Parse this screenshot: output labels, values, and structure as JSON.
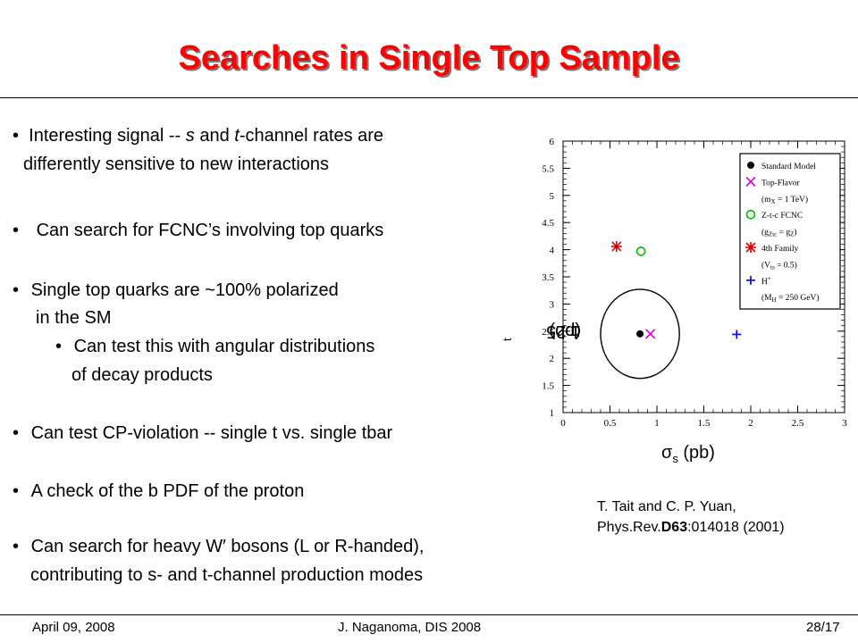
{
  "title": "Searches in Single Top Sample",
  "bullets": {
    "b1_pre": "Interesting signal -- ",
    "b1_s": "s",
    "b1_mid": " and ",
    "b1_t": "t",
    "b1_post": "-channel rates are",
    "b1_line2": "differently sensitive to new interactions",
    "b2": "Can search for FCNC’s involving top quarks",
    "b3": "Single top quarks are ~100% polarized",
    "b3_line2": "in the SM",
    "b4": "Can test this with angular distributions",
    "b4_line2": "of decay products",
    "b5": "Can test CP-violation -- single t vs. single tbar",
    "b6": "A check of the b PDF of the proton",
    "b7": "Can search for heavy W′ bosons (L or R-handed),",
    "b7_line2": "contributing to s- and t-channel production modes",
    "bullet_char": "•"
  },
  "citation": {
    "line1": "T. Tait and C. P. Yuan,",
    "journal": "Phys.Rev.",
    "volume": "D63",
    "rest": ":014018 (2001)"
  },
  "footer": {
    "date": "April 09, 2008",
    "author": "J. Naganoma, DIS 2008",
    "page": "28/17"
  },
  "chart_data": {
    "type": "scatter",
    "xlabel_symbol": "σ",
    "xlabel_sub": "s",
    "xlabel_unit": " (pb)",
    "ylabel_prefix": "1.25 ",
    "ylabel_symbol": "σ",
    "ylabel_sub": "t",
    "ylabel_unit": " (pb)",
    "xlim": [
      0,
      3
    ],
    "ylim": [
      1,
      6
    ],
    "x_ticks": [
      "0",
      "0.5",
      "1",
      "1.5",
      "2",
      "2.5",
      "3"
    ],
    "y_ticks": [
      "1",
      "1.5",
      "2",
      "2.5",
      "3",
      "3.5",
      "4",
      "4.5",
      "5",
      "5.5",
      "6"
    ],
    "series": [
      {
        "name": "Standard Model",
        "marker": "dot",
        "color": "#000000",
        "x": 0.82,
        "y": 2.45
      },
      {
        "name": "Top-Flavor",
        "marker": "x",
        "color": "#cc00cc",
        "x": 0.93,
        "y": 2.45
      },
      {
        "name": "Z-t-c FCNC",
        "marker": "circle",
        "color": "#00bb00",
        "x": 0.83,
        "y": 3.97
      },
      {
        "name": "4th Family",
        "marker": "star",
        "color": "#dd0000",
        "x": 0.57,
        "y": 4.06
      },
      {
        "name": "H+",
        "marker": "plus",
        "color": "#0000ee",
        "x": 1.85,
        "y": 2.44
      }
    ],
    "ellipse": {
      "cx": 0.82,
      "cy": 2.45,
      "rx": 0.42,
      "ry": 0.82
    },
    "legend": {
      "placement": "top-right",
      "entries": [
        {
          "label": "Standard Model",
          "marker": "dot",
          "color": "#000000"
        },
        {
          "label": "Top-Flavor",
          "marker": "x",
          "color": "#cc00cc"
        },
        {
          "label": "(m",
          "sub": "X",
          "tail": " = 1 TeV)",
          "marker": "none"
        },
        {
          "label": "Z-t-c FCNC",
          "marker": "circle",
          "color": "#00bb00"
        },
        {
          "label": "(g",
          "sub": "Ztc",
          "tail": " = g",
          "sub2": "Z",
          "tail2": ")",
          "marker": "none"
        },
        {
          "label": "4th Family",
          "marker": "star",
          "color": "#dd0000"
        },
        {
          "label": "(V",
          "sub": "ts",
          "tail": " = 0.5)",
          "marker": "none"
        },
        {
          "label": "H",
          "sup": "+",
          "marker": "plus",
          "color": "#0000ee"
        },
        {
          "label": "(M",
          "sub": "H",
          "tail": " = 250 GeV)",
          "marker": "none"
        }
      ]
    }
  }
}
